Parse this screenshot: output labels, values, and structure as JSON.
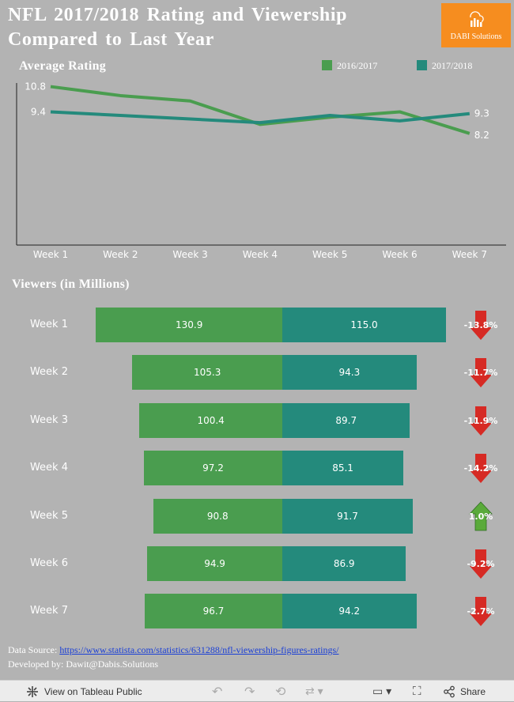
{
  "title": "NFL 2017/2018 Rating and Viewership Compared to Last Year",
  "logo": {
    "text": "DABI Solutions",
    "color": "#f68d1f"
  },
  "colors": {
    "prev": "#4a9d4f",
    "curr": "#248a7c",
    "down": "#d62a24",
    "up": "#5aaa3a"
  },
  "rating_section": {
    "title": "Average Rating"
  },
  "legend": [
    "2016/2017",
    "2017/2018"
  ],
  "viewers_section": {
    "title": "Viewers (in Millions)"
  },
  "chart_data": [
    {
      "type": "line",
      "title": "Average Rating",
      "categories": [
        "Week 1",
        "Week 2",
        "Week 3",
        "Week 4",
        "Week 5",
        "Week 6",
        "Week 7"
      ],
      "series": [
        {
          "name": "2016/2017",
          "values": [
            10.8,
            10.3,
            10.0,
            8.7,
            9.1,
            9.4,
            8.2
          ]
        },
        {
          "name": "2017/2018",
          "values": [
            9.4,
            9.2,
            9.0,
            8.8,
            9.2,
            8.9,
            9.3
          ]
        }
      ],
      "labels": {
        "first_prev": "10.8",
        "first_curr": "9.4",
        "last_curr": "9.3",
        "last_prev": "8.2"
      },
      "ylim": [
        2.0,
        11.0
      ],
      "xlabel": "",
      "ylabel": ""
    },
    {
      "type": "bar",
      "title": "Viewers (in Millions)",
      "categories": [
        "Week 1",
        "Week 2",
        "Week 3",
        "Week 4",
        "Week 5",
        "Week 6",
        "Week 7"
      ],
      "series": [
        {
          "name": "2016/2017",
          "values": [
            130.9,
            105.3,
            100.4,
            97.2,
            90.8,
            94.9,
            96.7
          ]
        },
        {
          "name": "2017/2018",
          "values": [
            115.0,
            94.3,
            89.7,
            85.1,
            91.7,
            86.9,
            94.2
          ]
        }
      ],
      "change": [
        "-13.8%",
        "-11.7%",
        "-11.9%",
        "-14.2%",
        "1.0%",
        "-9.2%",
        "-2.7%"
      ],
      "direction": [
        "down",
        "down",
        "down",
        "down",
        "up",
        "down",
        "down"
      ],
      "xlim": [
        0,
        135
      ]
    }
  ],
  "footer": {
    "source_label": "Data Source:",
    "source_url": "https://www.statista.com/statistics/631288/nfl-viewership-figures-ratings/",
    "developer": "Developed by: Dawit@Dabis.Solutions"
  },
  "toolbar": {
    "view_label": "View on Tableau Public",
    "share_label": "Share"
  }
}
